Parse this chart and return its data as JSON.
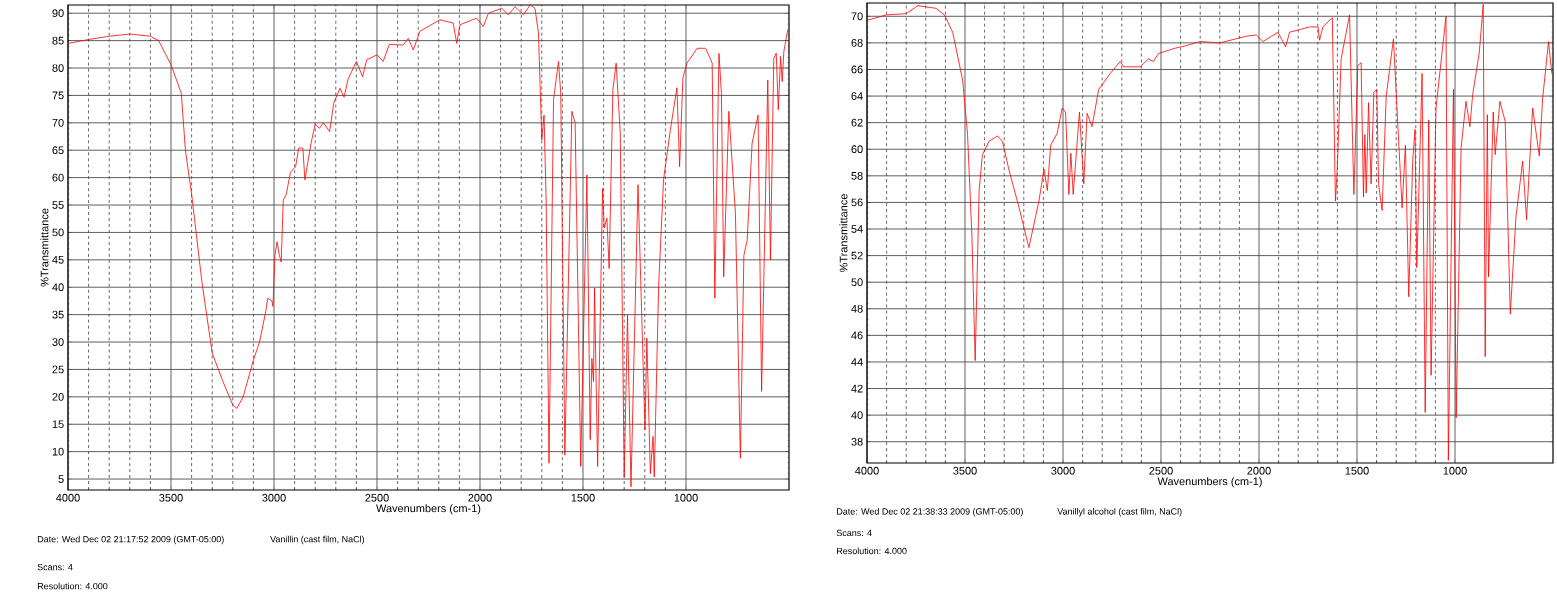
{
  "chart_data": [
    {
      "type": "line",
      "xlabel": "Wavenumbers (cm-1)",
      "ylabel": "%Transmittance",
      "color": "#ff0000",
      "grid": true,
      "xlim": [
        4000,
        500
      ],
      "ylim": [
        3,
        91.5
      ],
      "xticks": [
        4000,
        3500,
        3000,
        2500,
        2000,
        1500,
        1000
      ],
      "yticks": [
        5,
        10,
        15,
        20,
        25,
        30,
        35,
        40,
        45,
        50,
        55,
        60,
        65,
        70,
        75,
        80,
        85,
        90
      ],
      "x": [
        4000,
        3900,
        3800,
        3700,
        3600,
        3560,
        3500,
        3450,
        3430,
        3400,
        3350,
        3300,
        3250,
        3200,
        3180,
        3150,
        3100,
        3070,
        3040,
        3030,
        3010,
        3005,
        2995,
        2985,
        2975,
        2965,
        2955,
        2940,
        2920,
        2895,
        2880,
        2860,
        2850,
        2820,
        2800,
        2780,
        2760,
        2730,
        2710,
        2680,
        2660,
        2640,
        2600,
        2570,
        2550,
        2500,
        2470,
        2440,
        2373,
        2348,
        2324,
        2292,
        2194,
        2130,
        2113,
        2097,
        2016,
        1984,
        1959,
        1895,
        1862,
        1830,
        1789,
        1757,
        1733,
        1716,
        1700,
        1689,
        1679,
        1665,
        1643,
        1619,
        1608,
        1588,
        1554,
        1538,
        1511,
        1481,
        1465,
        1457,
        1449,
        1444,
        1429,
        1405,
        1397,
        1384,
        1373,
        1355,
        1339,
        1319,
        1300,
        1284,
        1267,
        1233,
        1199,
        1190,
        1173,
        1160,
        1154,
        1133,
        1109,
        1076,
        1044,
        1031,
        1015,
        995,
        962,
        946,
        905,
        873,
        860,
        840,
        828,
        817,
        792,
        760,
        736,
        719,
        703,
        679,
        650,
        633,
        603,
        590,
        574,
        562,
        552,
        541,
        533,
        525,
        509,
        505
      ],
      "values": [
        84.5,
        85.2,
        85.8,
        86.2,
        85.8,
        85.0,
        80.6,
        75.4,
        65,
        57,
        41,
        28,
        23,
        18.5,
        17.9,
        20,
        26.7,
        30,
        35.6,
        38,
        37.5,
        36.5,
        46,
        48.3,
        46,
        44.6,
        55.9,
        57,
        61,
        62,
        65.4,
        65.4,
        59.6,
        66.3,
        69.8,
        69,
        70,
        68.4,
        73.6,
        76.3,
        74.7,
        78,
        81.2,
        78.4,
        81.5,
        82.4,
        81.2,
        84.3,
        84.2,
        85.4,
        83.3,
        86.7,
        88.8,
        88.2,
        84.5,
        87.9,
        89.1,
        87.6,
        90,
        90.9,
        89.7,
        91.2,
        89.7,
        91.5,
        90.9,
        86.4,
        66.9,
        71.4,
        55.9,
        7.9,
        74.2,
        81.2,
        75.4,
        9.4,
        72.1,
        69.9,
        7.3,
        60.5,
        12.2,
        27.0,
        22.8,
        39.8,
        7.3,
        58.0,
        50.8,
        52.6,
        43.4,
        76.0,
        80.9,
        68.2,
        5.4,
        34.9,
        3.6,
        58.7,
        14.0,
        30.7,
        6.0,
        12.8,
        5.4,
        40.1,
        59.6,
        68.7,
        76.4,
        62.0,
        78.2,
        80.9,
        82.7,
        83.6,
        83.6,
        80.9,
        38.0,
        82.7,
        75.4,
        41.9,
        72.1,
        53.5,
        8.8,
        45.8,
        48.6,
        66.3,
        71.4,
        21.0,
        77.8,
        45.0,
        81.8,
        82.7,
        72.4,
        82.1,
        77.5,
        83.0,
        86.4,
        87
      ],
      "annotations": [
        "Date: Wed Dec 02 21:17:52 2009 (GMT-05:00)",
        "Vanillin (cast film, NaCl)",
        "Scans: 4",
        "Resolution:  4.000"
      ]
    },
    {
      "type": "line",
      "xlabel": "Wavenumbers (cm-1)",
      "ylabel": "%Transmittance",
      "color": "#ff0000",
      "grid": true,
      "xlim": [
        4000,
        500
      ],
      "ylim": [
        36.4,
        71
      ],
      "xticks": [
        4000,
        3500,
        3000,
        2500,
        2000,
        1500,
        1000
      ],
      "yticks": [
        38,
        40,
        42,
        44,
        46,
        48,
        50,
        52,
        54,
        56,
        58,
        60,
        62,
        64,
        66,
        68,
        70
      ],
      "x": [
        4000,
        3902,
        3800,
        3741,
        3648,
        3605,
        3563,
        3512,
        3487,
        3465,
        3448,
        3428,
        3411,
        3377,
        3334,
        3309,
        3275,
        3224,
        3174,
        3123,
        3097,
        3080,
        3063,
        3030,
        3004,
        2987,
        2970,
        2960,
        2948,
        2916,
        2894,
        2877,
        2852,
        2818,
        2759,
        2708,
        2691,
        2606,
        2564,
        2539,
        2513,
        2428,
        2369,
        2302,
        2200,
        2065,
        2014,
        1980,
        1903,
        1864,
        1844,
        1742,
        1699,
        1691,
        1674,
        1626,
        1610,
        1601,
        1581,
        1538,
        1516,
        1496,
        1479,
        1467,
        1460,
        1453,
        1441,
        1428,
        1414,
        1399,
        1390,
        1372,
        1351,
        1314,
        1270,
        1253,
        1236,
        1216,
        1204,
        1195,
        1168,
        1152,
        1134,
        1122,
        1097,
        1046,
        1034,
        1008,
        994,
        969,
        944,
        924,
        910,
        876,
        856,
        846,
        835,
        829,
        820,
        805,
        795,
        771,
        744,
        718,
        689,
        655,
        635,
        604,
        570,
        553,
        523,
        506
      ],
      "values": [
        69.7,
        70.1,
        70.2,
        70.8,
        70.6,
        70.1,
        68.8,
        65.2,
        61.1,
        53.6,
        44.1,
        56.9,
        59.6,
        60.6,
        61.0,
        60.6,
        58.4,
        55.6,
        52.6,
        56.1,
        58.5,
        56.9,
        60.3,
        61.2,
        63.1,
        62.8,
        56.6,
        59.7,
        56.6,
        62.8,
        57.4,
        62.7,
        61.7,
        64.5,
        65.7,
        66.6,
        66.2,
        66.2,
        66.8,
        66.6,
        67.2,
        67.6,
        67.8,
        68.1,
        68.0,
        68.5,
        68.6,
        68.1,
        68.8,
        67.7,
        68.8,
        69.2,
        69.2,
        68.2,
        69.2,
        69.9,
        56.1,
        58.4,
        66.8,
        70.1,
        56.6,
        66.3,
        66.5,
        56.4,
        61.1,
        56.7,
        63.5,
        57.4,
        64.3,
        64.5,
        57.4,
        55.4,
        64.0,
        68.3,
        55.6,
        60.3,
        48.9,
        59.1,
        61.5,
        51.1,
        65.7,
        40.2,
        62.2,
        43.0,
        63.1,
        70.0,
        36.6,
        64.5,
        39.8,
        60.1,
        63.6,
        61.7,
        64.1,
        67.3,
        70.9,
        44.4,
        62.6,
        50.4,
        55.1,
        62.8,
        59.6,
        63.6,
        62.1,
        47.6,
        54.9,
        59.1,
        54.7,
        63.1,
        59.5,
        63.8,
        68.1,
        65.7
      ],
      "annotations": [
        "Date: Wed Dec 02 21:38:33 2009 (GMT-05:00)",
        "Vanillyl alcohol (cast film, NaCl)",
        "Scans: 4",
        "Resolution:  4.000"
      ]
    }
  ]
}
